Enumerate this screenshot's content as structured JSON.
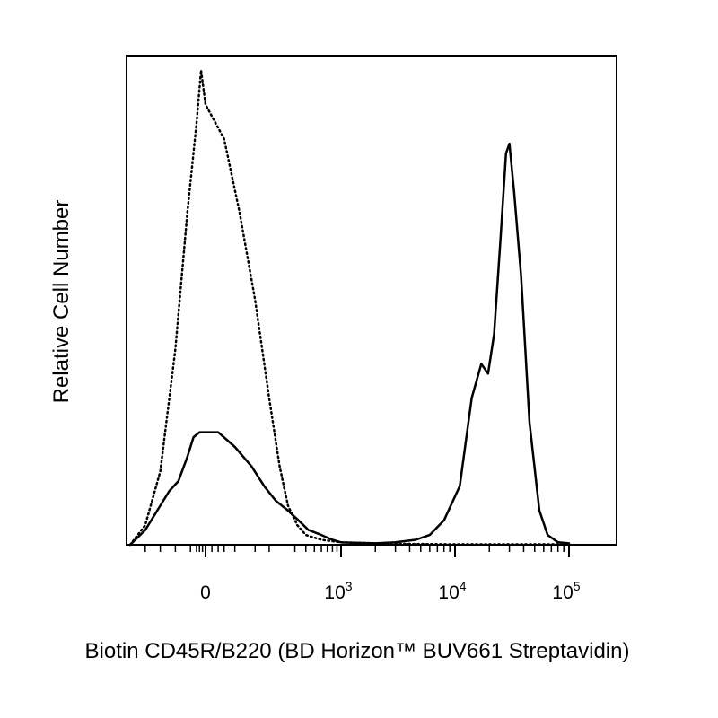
{
  "chart_data": {
    "type": "histogram-overlay",
    "xlabel": "Biotin CD45R/B220 (BD Horizon™ BUV661 Streptavidin)",
    "ylabel": "Relative Cell Number",
    "x_scale": "biexponential (logicle)",
    "x_ticks": [
      {
        "label": "0",
        "base": "0",
        "exp": ""
      },
      {
        "label": "10^3",
        "base": "10",
        "exp": "3"
      },
      {
        "label": "10^4",
        "base": "10",
        "exp": "4"
      },
      {
        "label": "10^5",
        "base": "10",
        "exp": "5"
      }
    ],
    "y_ticks": "none",
    "legend": "none",
    "series": [
      {
        "style": "dotted",
        "points": [
          [
            -250,
            0.0
          ],
          [
            -200,
            0.04
          ],
          [
            -150,
            0.15
          ],
          [
            -100,
            0.4
          ],
          [
            -60,
            0.68
          ],
          [
            -30,
            0.86
          ],
          [
            -15,
            0.97
          ],
          [
            0,
            0.9
          ],
          [
            30,
            0.83
          ],
          [
            60,
            0.68
          ],
          [
            100,
            0.5
          ],
          [
            150,
            0.3
          ],
          [
            200,
            0.16
          ],
          [
            250,
            0.08
          ],
          [
            320,
            0.04
          ],
          [
            400,
            0.02
          ],
          [
            600,
            0.01
          ],
          [
            1000,
            0.005
          ],
          [
            3000,
            0.002
          ],
          [
            10000,
            0.001
          ],
          [
            100000,
            0.001
          ]
        ]
      },
      {
        "style": "solid",
        "points": [
          [
            -250,
            0.0
          ],
          [
            -200,
            0.03
          ],
          [
            -150,
            0.08
          ],
          [
            -120,
            0.11
          ],
          [
            -90,
            0.13
          ],
          [
            -60,
            0.18
          ],
          [
            -40,
            0.22
          ],
          [
            -20,
            0.23
          ],
          [
            0,
            0.23
          ],
          [
            20,
            0.23
          ],
          [
            50,
            0.2
          ],
          [
            90,
            0.16
          ],
          [
            130,
            0.12
          ],
          [
            180,
            0.09
          ],
          [
            250,
            0.07
          ],
          [
            330,
            0.05
          ],
          [
            430,
            0.03
          ],
          [
            600,
            0.02
          ],
          [
            800,
            0.01
          ],
          [
            1000,
            0.005
          ],
          [
            2000,
            0.003
          ],
          [
            3000,
            0.005
          ],
          [
            4500,
            0.01
          ],
          [
            6000,
            0.02
          ],
          [
            8000,
            0.05
          ],
          [
            11000,
            0.12
          ],
          [
            14000,
            0.3
          ],
          [
            17000,
            0.37
          ],
          [
            19500,
            0.35
          ],
          [
            22000,
            0.43
          ],
          [
            25000,
            0.62
          ],
          [
            28000,
            0.8
          ],
          [
            30000,
            0.82
          ],
          [
            33000,
            0.72
          ],
          [
            38000,
            0.55
          ],
          [
            45000,
            0.25
          ],
          [
            55000,
            0.07
          ],
          [
            65000,
            0.02
          ],
          [
            80000,
            0.005
          ],
          [
            100000,
            0.003
          ]
        ]
      }
    ]
  }
}
